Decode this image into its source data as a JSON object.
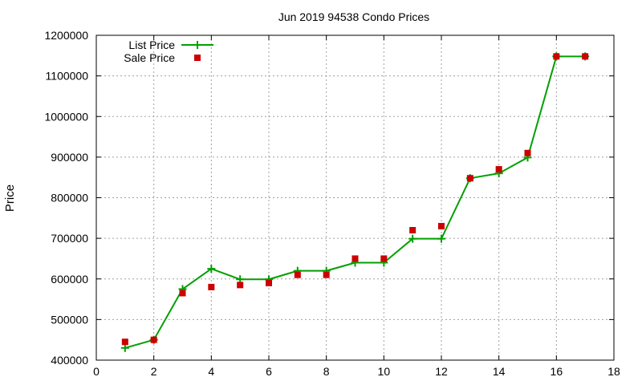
{
  "chart_data": {
    "type": "line",
    "title": "Jun 2019 94538 Condo Prices",
    "xlabel": "",
    "ylabel": "Price",
    "xlim": [
      0,
      18
    ],
    "ylim": [
      400000,
      1200000
    ],
    "x_ticks": [
      0,
      2,
      4,
      6,
      8,
      10,
      12,
      14,
      16,
      18
    ],
    "y_ticks": [
      400000,
      500000,
      600000,
      700000,
      800000,
      900000,
      1000000,
      1100000,
      1200000
    ],
    "grid": true,
    "legend_position": "top-left",
    "series": [
      {
        "name": "List Price",
        "style": "line-with-plus-markers",
        "color": "#00a000",
        "x": [
          1,
          2,
          3,
          4,
          5,
          6,
          7,
          8,
          9,
          10,
          11,
          12,
          13,
          14,
          15,
          16,
          17
        ],
        "y": [
          430000,
          450000,
          575000,
          625000,
          599000,
          599000,
          620000,
          620000,
          640000,
          640000,
          699000,
          699000,
          848000,
          860000,
          899000,
          1148000,
          1148000
        ]
      },
      {
        "name": "Sale Price",
        "style": "square-markers",
        "color": "#cc0000",
        "x": [
          1,
          2,
          3,
          4,
          5,
          6,
          7,
          8,
          9,
          10,
          11,
          12,
          13,
          14,
          15,
          16,
          17
        ],
        "y": [
          445000,
          450000,
          565000,
          580000,
          585000,
          590000,
          610000,
          610000,
          650000,
          650000,
          720000,
          730000,
          848000,
          870000,
          910000,
          1148000,
          1148000
        ]
      }
    ]
  }
}
